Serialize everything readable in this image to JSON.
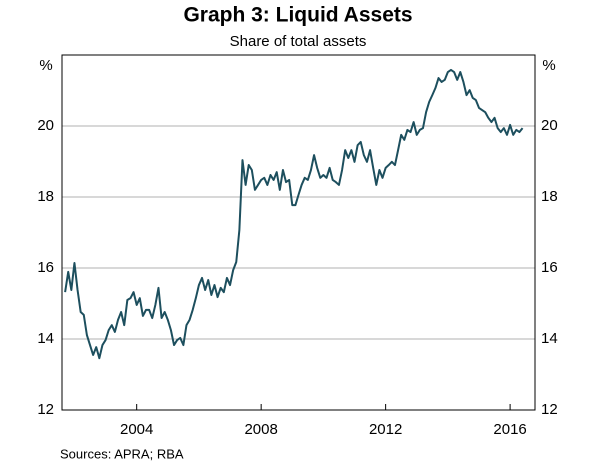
{
  "chart_data": {
    "type": "line",
    "title": "Graph 3: Liquid Assets",
    "subtitle": "Share of total assets",
    "y_unit": "%",
    "source": "Sources:  APRA; RBA",
    "xlim": [
      2001.6,
      2016.8
    ],
    "xticks": [
      2004,
      2008,
      2012,
      2016
    ],
    "ylim": [
      12,
      22
    ],
    "yticks": [
      12,
      14,
      16,
      18,
      20
    ],
    "grid": true,
    "x": [
      2001.7,
      2001.8,
      2001.9,
      2002.0,
      2002.1,
      2002.2,
      2002.3,
      2002.4,
      2002.5,
      2002.6,
      2002.7,
      2002.8,
      2002.9,
      2003.0,
      2003.1,
      2003.2,
      2003.3,
      2003.4,
      2003.5,
      2003.6,
      2003.7,
      2003.8,
      2003.9,
      2004.0,
      2004.1,
      2004.2,
      2004.3,
      2004.4,
      2004.5,
      2004.6,
      2004.7,
      2004.8,
      2004.9,
      2005.0,
      2005.1,
      2005.2,
      2005.3,
      2005.4,
      2005.5,
      2005.6,
      2005.7,
      2005.8,
      2005.9,
      2006.0,
      2006.1,
      2006.2,
      2006.3,
      2006.4,
      2006.5,
      2006.6,
      2006.7,
      2006.8,
      2006.9,
      2007.0,
      2007.1,
      2007.2,
      2007.3,
      2007.4,
      2007.5,
      2007.6,
      2007.7,
      2007.8,
      2007.9,
      2008.0,
      2008.1,
      2008.2,
      2008.3,
      2008.4,
      2008.5,
      2008.6,
      2008.7,
      2008.8,
      2008.9,
      2009.0,
      2009.1,
      2009.2,
      2009.3,
      2009.4,
      2009.5,
      2009.6,
      2009.7,
      2009.8,
      2009.9,
      2010.0,
      2010.1,
      2010.2,
      2010.3,
      2010.4,
      2010.5,
      2010.6,
      2010.7,
      2010.8,
      2010.9,
      2011.0,
      2011.1,
      2011.2,
      2011.3,
      2011.4,
      2011.5,
      2011.6,
      2011.7,
      2011.8,
      2011.9,
      2012.0,
      2012.1,
      2012.2,
      2012.3,
      2012.4,
      2012.5,
      2012.6,
      2012.7,
      2012.8,
      2012.9,
      2013.0,
      2013.1,
      2013.2,
      2013.3,
      2013.4,
      2013.5,
      2013.6,
      2013.7,
      2013.8,
      2013.9,
      2014.0,
      2014.1,
      2014.2,
      2014.3,
      2014.4,
      2014.5,
      2014.6,
      2014.7,
      2014.8,
      2014.9,
      2015.0,
      2015.1,
      2015.2,
      2015.3,
      2015.4,
      2015.5,
      2015.6,
      2015.7,
      2015.8,
      2015.9,
      2016.0,
      2016.1,
      2016.2,
      2016.3,
      2016.4
    ],
    "series": [
      {
        "name": "Liquid assets",
        "color": "#1d4f5e",
        "values": [
          15.32,
          15.89,
          15.38,
          16.14,
          15.38,
          14.76,
          14.68,
          14.11,
          13.83,
          13.55,
          13.77,
          13.46,
          13.83,
          13.97,
          14.25,
          14.39,
          14.2,
          14.54,
          14.76,
          14.39,
          15.1,
          15.15,
          15.32,
          14.96,
          15.15,
          14.65,
          14.82,
          14.82,
          14.59,
          14.96,
          15.44,
          14.59,
          14.76,
          14.54,
          14.25,
          13.83,
          13.97,
          14.03,
          13.83,
          14.39,
          14.54,
          14.82,
          15.15,
          15.52,
          15.72,
          15.38,
          15.66,
          15.24,
          15.52,
          15.18,
          15.44,
          15.32,
          15.72,
          15.52,
          15.94,
          16.17,
          17.07,
          19.04,
          18.34,
          18.9,
          18.76,
          18.2,
          18.34,
          18.48,
          18.54,
          18.34,
          18.62,
          18.48,
          18.7,
          18.2,
          18.76,
          18.42,
          18.48,
          17.77,
          17.77,
          18.06,
          18.34,
          18.54,
          18.48,
          18.76,
          19.18,
          18.82,
          18.54,
          18.62,
          18.54,
          18.82,
          18.48,
          18.42,
          18.34,
          18.76,
          19.32,
          19.1,
          19.32,
          18.99,
          19.46,
          19.55,
          19.18,
          18.99,
          19.32,
          18.82,
          18.34,
          18.76,
          18.54,
          18.82,
          18.9,
          18.99,
          18.9,
          19.32,
          19.75,
          19.61,
          19.89,
          19.83,
          20.11,
          19.75,
          19.89,
          19.94,
          20.39,
          20.68,
          20.87,
          21.07,
          21.35,
          21.24,
          21.3,
          21.52,
          21.58,
          21.52,
          21.3,
          21.52,
          21.24,
          20.87,
          21.01,
          20.79,
          20.73,
          20.51,
          20.45,
          20.39,
          20.23,
          20.11,
          20.23,
          19.94,
          19.83,
          19.94,
          19.75,
          20.03,
          19.75,
          19.89,
          19.83,
          19.94
        ]
      }
    ]
  }
}
